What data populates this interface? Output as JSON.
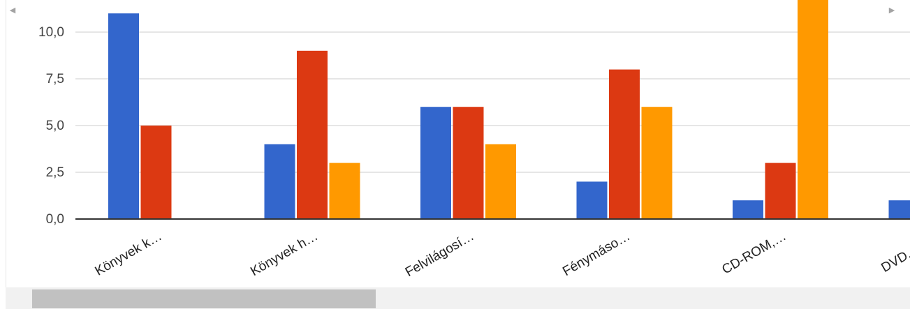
{
  "chart_data": {
    "type": "bar",
    "categories": [
      "Könyvek k…",
      "Könyvek h…",
      "Felvilágosí…",
      "Fénymáso…",
      "CD-ROM,…",
      "DVD, CD…"
    ],
    "series": [
      {
        "values": [
          11,
          4,
          6,
          2,
          1,
          1
        ]
      },
      {
        "values": [
          5,
          9,
          6,
          8,
          3,
          null
        ]
      },
      {
        "values": [
          0,
          3,
          4,
          6,
          12,
          null
        ]
      }
    ],
    "yticks": [
      "0,0",
      "2,5",
      "5,0",
      "7,5",
      "10,0"
    ],
    "ylim": [
      0,
      11.5
    ],
    "grid": true,
    "colors": [
      "#3366cc",
      "#dc3912",
      "#ff9900"
    ]
  },
  "scrollbar": {
    "left_arrow": "◀",
    "right_arrow": "▶"
  }
}
